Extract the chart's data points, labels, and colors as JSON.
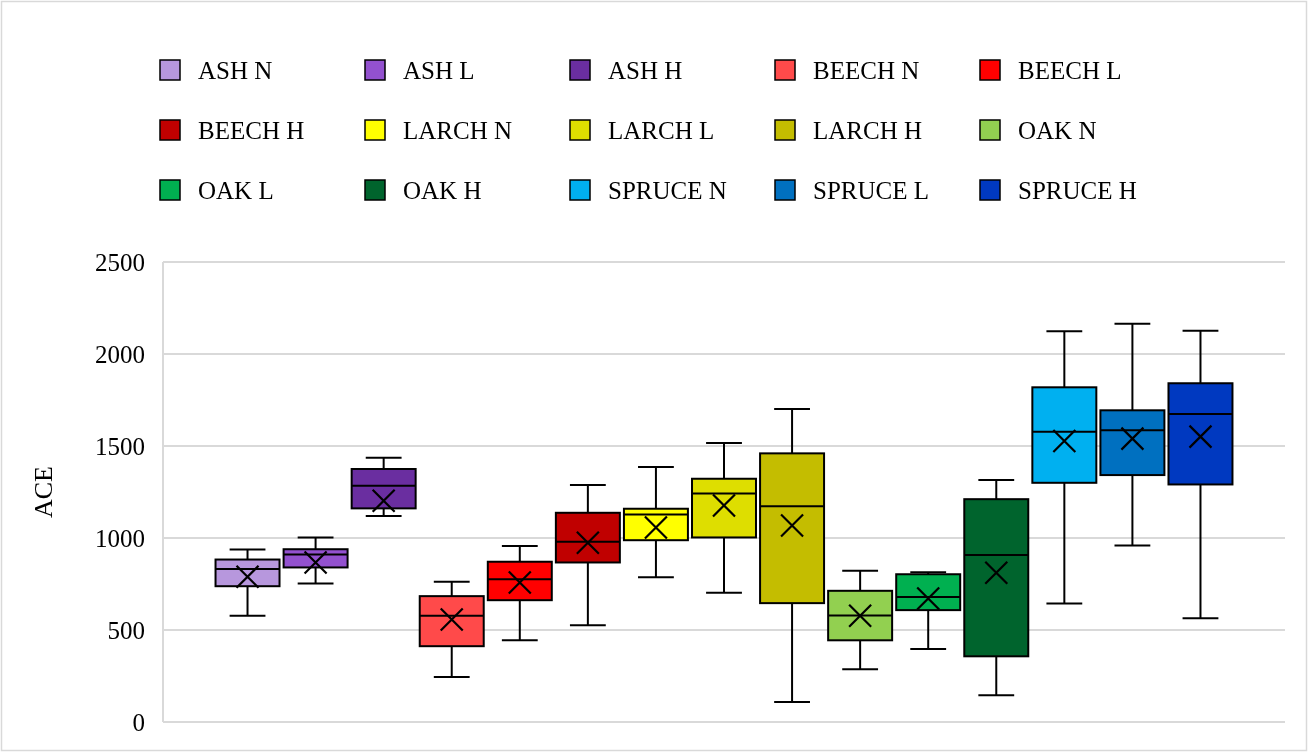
{
  "chart_data": {
    "type": "box",
    "ylabel": "ACE",
    "categories": [
      null
    ],
    "ylim": [
      0,
      2500
    ],
    "yticks": [
      0,
      500,
      1000,
      1500,
      2000,
      2500
    ],
    "grid": "y",
    "legend": "top",
    "marker": "cross",
    "series": [
      {
        "name": "ASH N",
        "color": "#b797dd",
        "boxes": [
          {
            "low": 577,
            "q1": 738,
            "median": 831,
            "q3": 883,
            "high": 938,
            "mean": 789
          }
        ]
      },
      {
        "name": "ASH L",
        "color": "#9351cf",
        "boxes": [
          {
            "low": 753,
            "q1": 840,
            "median": 910,
            "q3": 939,
            "high": 1003,
            "mean": 867
          }
        ]
      },
      {
        "name": "ASH H",
        "color": "#6a2ea0",
        "boxes": [
          {
            "low": 1119,
            "q1": 1161,
            "median": 1284,
            "q3": 1375,
            "high": 1436,
            "mean": 1202
          }
        ]
      },
      {
        "name": "BEECH N",
        "color": "#ff4a4a",
        "boxes": [
          {
            "low": 245,
            "q1": 412,
            "median": 577,
            "q3": 684,
            "high": 762,
            "mean": 557
          }
        ]
      },
      {
        "name": "BEECH L",
        "color": "#ff0000",
        "boxes": [
          {
            "low": 444,
            "q1": 662,
            "median": 776,
            "q3": 871,
            "high": 956,
            "mean": 758
          }
        ]
      },
      {
        "name": "BEECH H",
        "color": "#c00000",
        "boxes": [
          {
            "low": 526,
            "q1": 867,
            "median": 979,
            "q3": 1137,
            "high": 1288,
            "mean": 974
          }
        ]
      },
      {
        "name": "LARCH N",
        "color": "#ffff00",
        "boxes": [
          {
            "low": 787,
            "q1": 988,
            "median": 1128,
            "q3": 1159,
            "high": 1386,
            "mean": 1057
          }
        ]
      },
      {
        "name": "LARCH L",
        "color": "#dede00",
        "boxes": [
          {
            "low": 702,
            "q1": 1003,
            "median": 1242,
            "q3": 1322,
            "high": 1516,
            "mean": 1177
          }
        ]
      },
      {
        "name": "LARCH H",
        "color": "#c4bd00",
        "boxes": [
          {
            "low": 109,
            "q1": 646,
            "median": 1172,
            "q3": 1460,
            "high": 1701,
            "mean": 1068
          }
        ]
      },
      {
        "name": "OAK N",
        "color": "#92d050",
        "boxes": [
          {
            "low": 287,
            "q1": 444,
            "median": 579,
            "q3": 713,
            "high": 822,
            "mean": 577
          }
        ]
      },
      {
        "name": "OAK L",
        "color": "#00b050",
        "boxes": [
          {
            "low": 397,
            "q1": 608,
            "median": 680,
            "q3": 803,
            "high": 814,
            "mean": 671
          }
        ]
      },
      {
        "name": "OAK H",
        "color": "#00642d",
        "boxes": [
          {
            "low": 145,
            "q1": 357,
            "median": 907,
            "q3": 1211,
            "high": 1315,
            "mean": 811
          }
        ]
      },
      {
        "name": "SPRUCE N",
        "color": "#00b0f0",
        "boxes": [
          {
            "low": 644,
            "q1": 1300,
            "median": 1578,
            "q3": 1819,
            "high": 2124,
            "mean": 1527
          }
        ]
      },
      {
        "name": "SPRUCE L",
        "color": "#0070c0",
        "boxes": [
          {
            "low": 959,
            "q1": 1342,
            "median": 1585,
            "q3": 1694,
            "high": 2165,
            "mean": 1540
          }
        ]
      },
      {
        "name": "SPRUCE H",
        "color": "#0039c0",
        "boxes": [
          {
            "low": 564,
            "q1": 1291,
            "median": 1674,
            "q3": 1841,
            "high": 2127,
            "mean": 1551
          }
        ]
      }
    ]
  }
}
